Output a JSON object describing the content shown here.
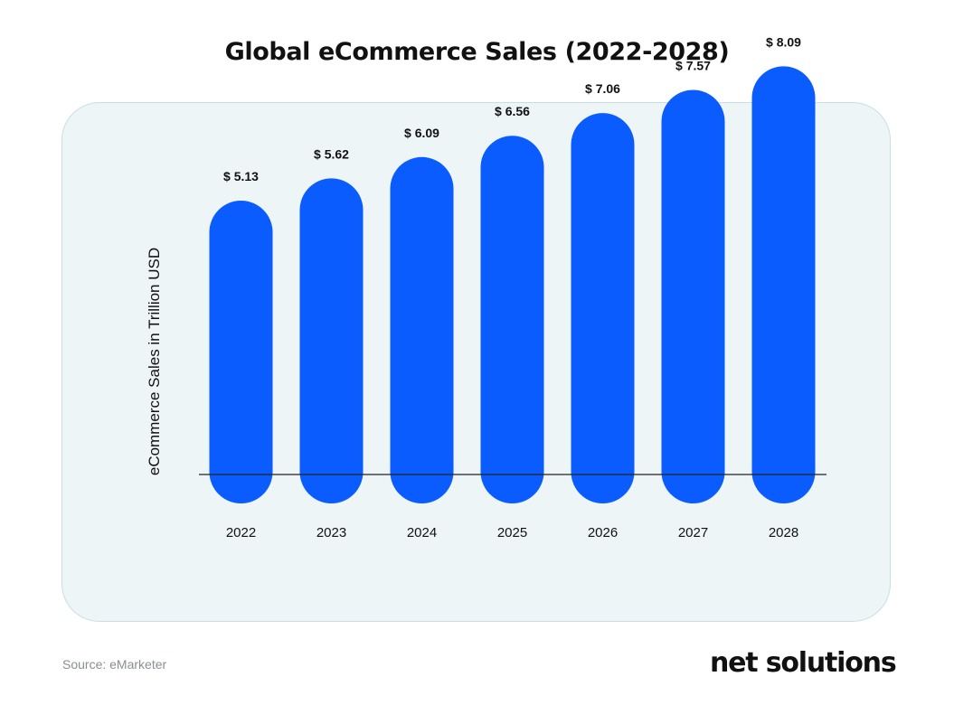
{
  "source": "Source: eMarketer",
  "logo": {
    "text_before": "net s",
    "text_o": "o",
    "text_after": "lutions"
  },
  "colors": {
    "bar": "#0a5cff",
    "panel": "#eef5f7",
    "axis": "#222222",
    "text": "#111111"
  },
  "chart_data": {
    "type": "bar",
    "title": "Global eCommerce Sales (2022-2028)",
    "ylabel": "eCommerce Sales in Trillion USD",
    "xlabel": "",
    "categories": [
      "2022",
      "2023",
      "2024",
      "2025",
      "2026",
      "2027",
      "2028"
    ],
    "values": [
      5.13,
      5.62,
      6.09,
      6.56,
      7.06,
      7.57,
      8.09
    ],
    "value_labels": [
      "$ 5.13",
      "$ 5.62",
      "$ 6.09",
      "$ 6.56",
      "$ 7.06",
      "$ 7.57",
      "$ 8.09"
    ],
    "bar_style": "rounded-pill",
    "grid": false,
    "legend": "none"
  }
}
